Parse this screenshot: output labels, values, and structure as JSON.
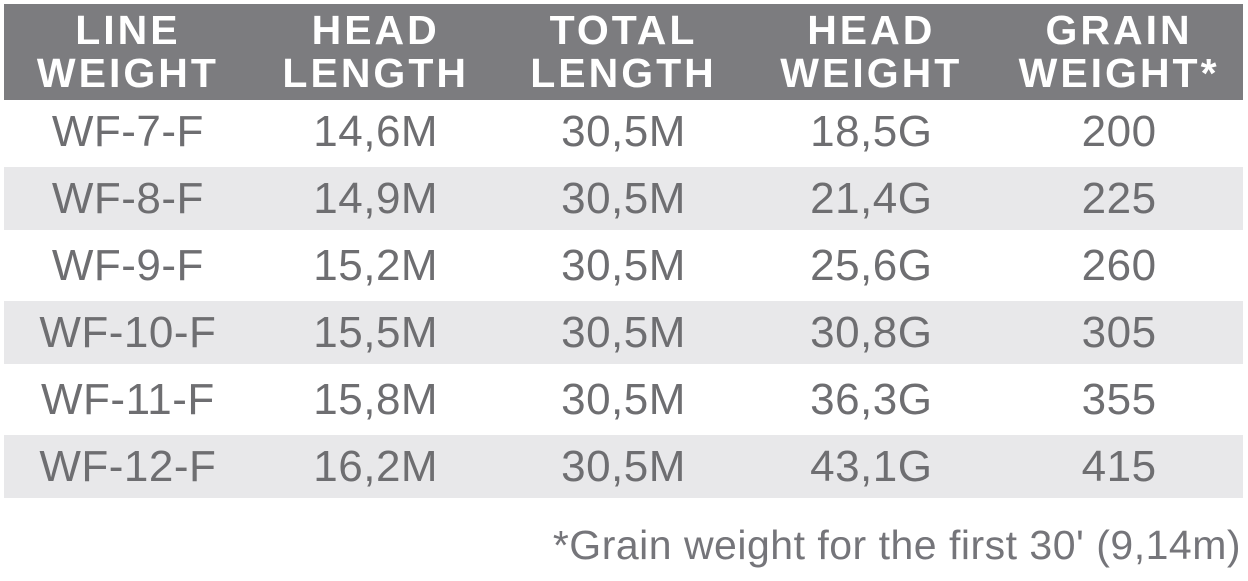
{
  "colors": {
    "header_bg": "#7c7c7f",
    "header_text": "#ffffff",
    "row_alt_bg": "#e8e8ea",
    "body_text": "#6e6e71"
  },
  "table": {
    "columns": [
      {
        "line1": "LINE",
        "line2": "WEIGHT"
      },
      {
        "line1": "HEAD",
        "line2": "LENGTH"
      },
      {
        "line1": "TOTAL",
        "line2": "LENGTH"
      },
      {
        "line1": "HEAD",
        "line2": "WEIGHT"
      },
      {
        "line1": "GRAIN",
        "line2": "WEIGHT*"
      }
    ],
    "rows": [
      [
        "WF-7-F",
        "14,6M",
        "30,5M",
        "18,5G",
        "200"
      ],
      [
        "WF-8-F",
        "14,9M",
        "30,5M",
        "21,4G",
        "225"
      ],
      [
        "WF-9-F",
        "15,2M",
        "30,5M",
        "25,6G",
        "260"
      ],
      [
        "WF-10-F",
        "15,5M",
        "30,5M",
        "30,8G",
        "305"
      ],
      [
        "WF-11-F",
        "15,8M",
        "30,5M",
        "36,3G",
        "355"
      ],
      [
        "WF-12-F",
        "16,2M",
        "30,5M",
        "43,1G",
        "415"
      ]
    ],
    "footnote": "*Grain weight for the first 30' (9,14m)"
  },
  "chart_data": {
    "type": "table",
    "title": "Fly line specifications",
    "columns": [
      "LINE WEIGHT",
      "HEAD LENGTH",
      "TOTAL LENGTH",
      "HEAD WEIGHT",
      "GRAIN WEIGHT*"
    ],
    "rows": [
      [
        "WF-7-F",
        "14,6M",
        "30,5M",
        "18,5G",
        "200"
      ],
      [
        "WF-8-F",
        "14,9M",
        "30,5M",
        "21,4G",
        "225"
      ],
      [
        "WF-9-F",
        "15,2M",
        "30,5M",
        "25,6G",
        "260"
      ],
      [
        "WF-10-F",
        "15,5M",
        "30,5M",
        "30,8G",
        "305"
      ],
      [
        "WF-11-F",
        "15,8M",
        "30,5M",
        "36,3G",
        "355"
      ],
      [
        "WF-12-F",
        "16,2M",
        "30,5M",
        "43,1G",
        "415"
      ]
    ],
    "annotations": [
      "*Grain weight for the first 30' (9,14m)"
    ]
  }
}
